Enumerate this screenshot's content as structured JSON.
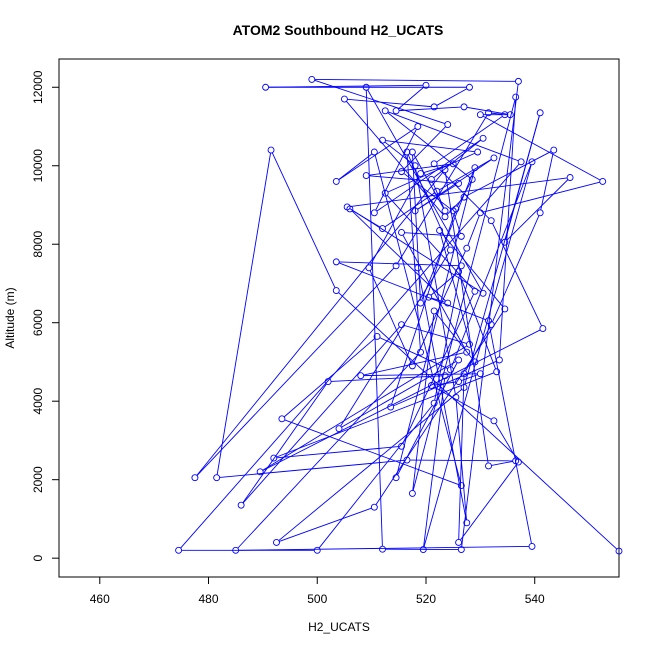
{
  "chart_data": {
    "type": "line",
    "title": "ATOM2 Southbound H2_UCATS",
    "xlabel": "H2_UCATS",
    "ylabel": "Altitude (m)",
    "xlim": [
      452.5,
      555.5
    ],
    "ylim": [
      -480,
      12720
    ],
    "xticks": [
      460,
      480,
      500,
      520,
      540
    ],
    "yticks": [
      0,
      2000,
      4000,
      6000,
      8000,
      10000,
      12000
    ],
    "grid": false,
    "legend": "none",
    "markers": "open-circle",
    "series": [
      {
        "color": "#0000ff",
        "points": [
          [
            555.5,
            180
          ],
          [
            503.5,
            6820
          ],
          [
            491.5,
            10400
          ],
          [
            481.5,
            2050
          ],
          [
            516.5,
            2500
          ],
          [
            536.5,
            2480
          ],
          [
            531.5,
            2350
          ],
          [
            523.5,
            9900
          ],
          [
            477.5,
            2050
          ],
          [
            514.5,
            7450
          ],
          [
            531.5,
            11350
          ],
          [
            534.5,
            11300
          ],
          [
            521.5,
            10050
          ],
          [
            532.0,
            8600
          ],
          [
            541.5,
            5850
          ],
          [
            489.5,
            2200
          ],
          [
            528.0,
            5450
          ],
          [
            515.5,
            5950
          ],
          [
            486.0,
            1350
          ],
          [
            502.0,
            4500
          ],
          [
            523.5,
            4650
          ],
          [
            519.5,
            220
          ],
          [
            539.5,
            10100
          ],
          [
            524.5,
            4800
          ],
          [
            511.0,
            5650
          ],
          [
            493.5,
            3550
          ],
          [
            526.5,
            1850
          ],
          [
            510.5,
            10350
          ],
          [
            503.5,
            9600
          ],
          [
            518.5,
            11000
          ],
          [
            510.5,
            8800
          ],
          [
            530.5,
            10700
          ],
          [
            521.0,
            9650
          ],
          [
            523.5,
            8850
          ],
          [
            517.5,
            10350
          ],
          [
            519.0,
            6500
          ],
          [
            529.0,
            9950
          ],
          [
            514.5,
            2050
          ],
          [
            526.0,
            5050
          ],
          [
            504.0,
            3300
          ],
          [
            524.5,
            7850
          ],
          [
            516.5,
            10350
          ],
          [
            519.0,
            5250
          ],
          [
            485.0,
            200
          ],
          [
            539.5,
            300
          ],
          [
            531.5,
            6050
          ],
          [
            503.5,
            7550
          ],
          [
            526.5,
            7450
          ],
          [
            521.5,
            3950
          ],
          [
            500.0,
            200
          ],
          [
            474.5,
            200
          ],
          [
            537.5,
            10100
          ],
          [
            512.5,
            11400
          ],
          [
            528.5,
            9650
          ],
          [
            525.5,
            8900
          ],
          [
            513.5,
            3850
          ],
          [
            533.5,
            5050
          ],
          [
            536.5,
            11750
          ],
          [
            517.5,
            1650
          ],
          [
            521.5,
            6300
          ],
          [
            529.0,
            5000
          ],
          [
            522.5,
            8350
          ],
          [
            534.5,
            6350
          ],
          [
            510.5,
            1300
          ],
          [
            492.5,
            400
          ],
          [
            527.0,
            4350
          ],
          [
            541.0,
            11350
          ],
          [
            534.5,
            8050
          ],
          [
            546.5,
            9700
          ],
          [
            505.5,
            8950
          ],
          [
            530.5,
            6750
          ],
          [
            509.0,
            12000
          ],
          [
            512.0,
            230
          ],
          [
            526.5,
            220
          ],
          [
            537.0,
            12150
          ],
          [
            499.0,
            12200
          ],
          [
            524.0,
            11050
          ],
          [
            515.5,
            9850
          ],
          [
            525.0,
            8850
          ],
          [
            526.5,
            8200
          ],
          [
            515.5,
            8300
          ],
          [
            527.5,
            5250
          ],
          [
            508.0,
            4650
          ],
          [
            530.0,
            4700
          ],
          [
            526.0,
            4500
          ],
          [
            521.0,
            4400
          ],
          [
            532.5,
            3500
          ],
          [
            537.0,
            2450
          ],
          [
            526.0,
            400
          ],
          [
            527.0,
            4700
          ],
          [
            532.0,
            5950
          ],
          [
            541.0,
            8800
          ],
          [
            543.5,
            10400
          ],
          [
            527.0,
            9200
          ],
          [
            523.5,
            8700
          ],
          [
            505.0,
            11700
          ],
          [
            521.5,
            11500
          ],
          [
            528.0,
            12000
          ],
          [
            490.5,
            12000
          ],
          [
            520.0,
            12050
          ],
          [
            514.5,
            11400
          ],
          [
            527.0,
            11500
          ],
          [
            535.5,
            11300
          ],
          [
            530.0,
            11300
          ],
          [
            552.5,
            9600
          ],
          [
            530.0,
            8800
          ],
          [
            527.5,
            7900
          ],
          [
            517.5,
            4900
          ],
          [
            509.5,
            7400
          ],
          [
            519.0,
            9800
          ],
          [
            525.0,
            10050
          ],
          [
            509.0,
            9750
          ],
          [
            526.0,
            9550
          ],
          [
            518.0,
            8850
          ],
          [
            532.5,
            10200
          ],
          [
            522.0,
            9350
          ],
          [
            512.0,
            8400
          ],
          [
            506.0,
            8900
          ],
          [
            524.0,
            6500
          ],
          [
            520.5,
            6650
          ],
          [
            526.0,
            7300
          ],
          [
            533.0,
            4750
          ],
          [
            492.0,
            2550
          ],
          [
            515.5,
            2850
          ],
          [
            529.0,
            6800
          ],
          [
            512.5,
            9300
          ],
          [
            529.5,
            10350
          ],
          [
            512.0,
            10650
          ],
          [
            518.0,
            10000
          ],
          [
            525.5,
            4100
          ],
          [
            527.5,
            900
          ],
          [
            518.5,
            7400
          ]
        ]
      }
    ]
  }
}
